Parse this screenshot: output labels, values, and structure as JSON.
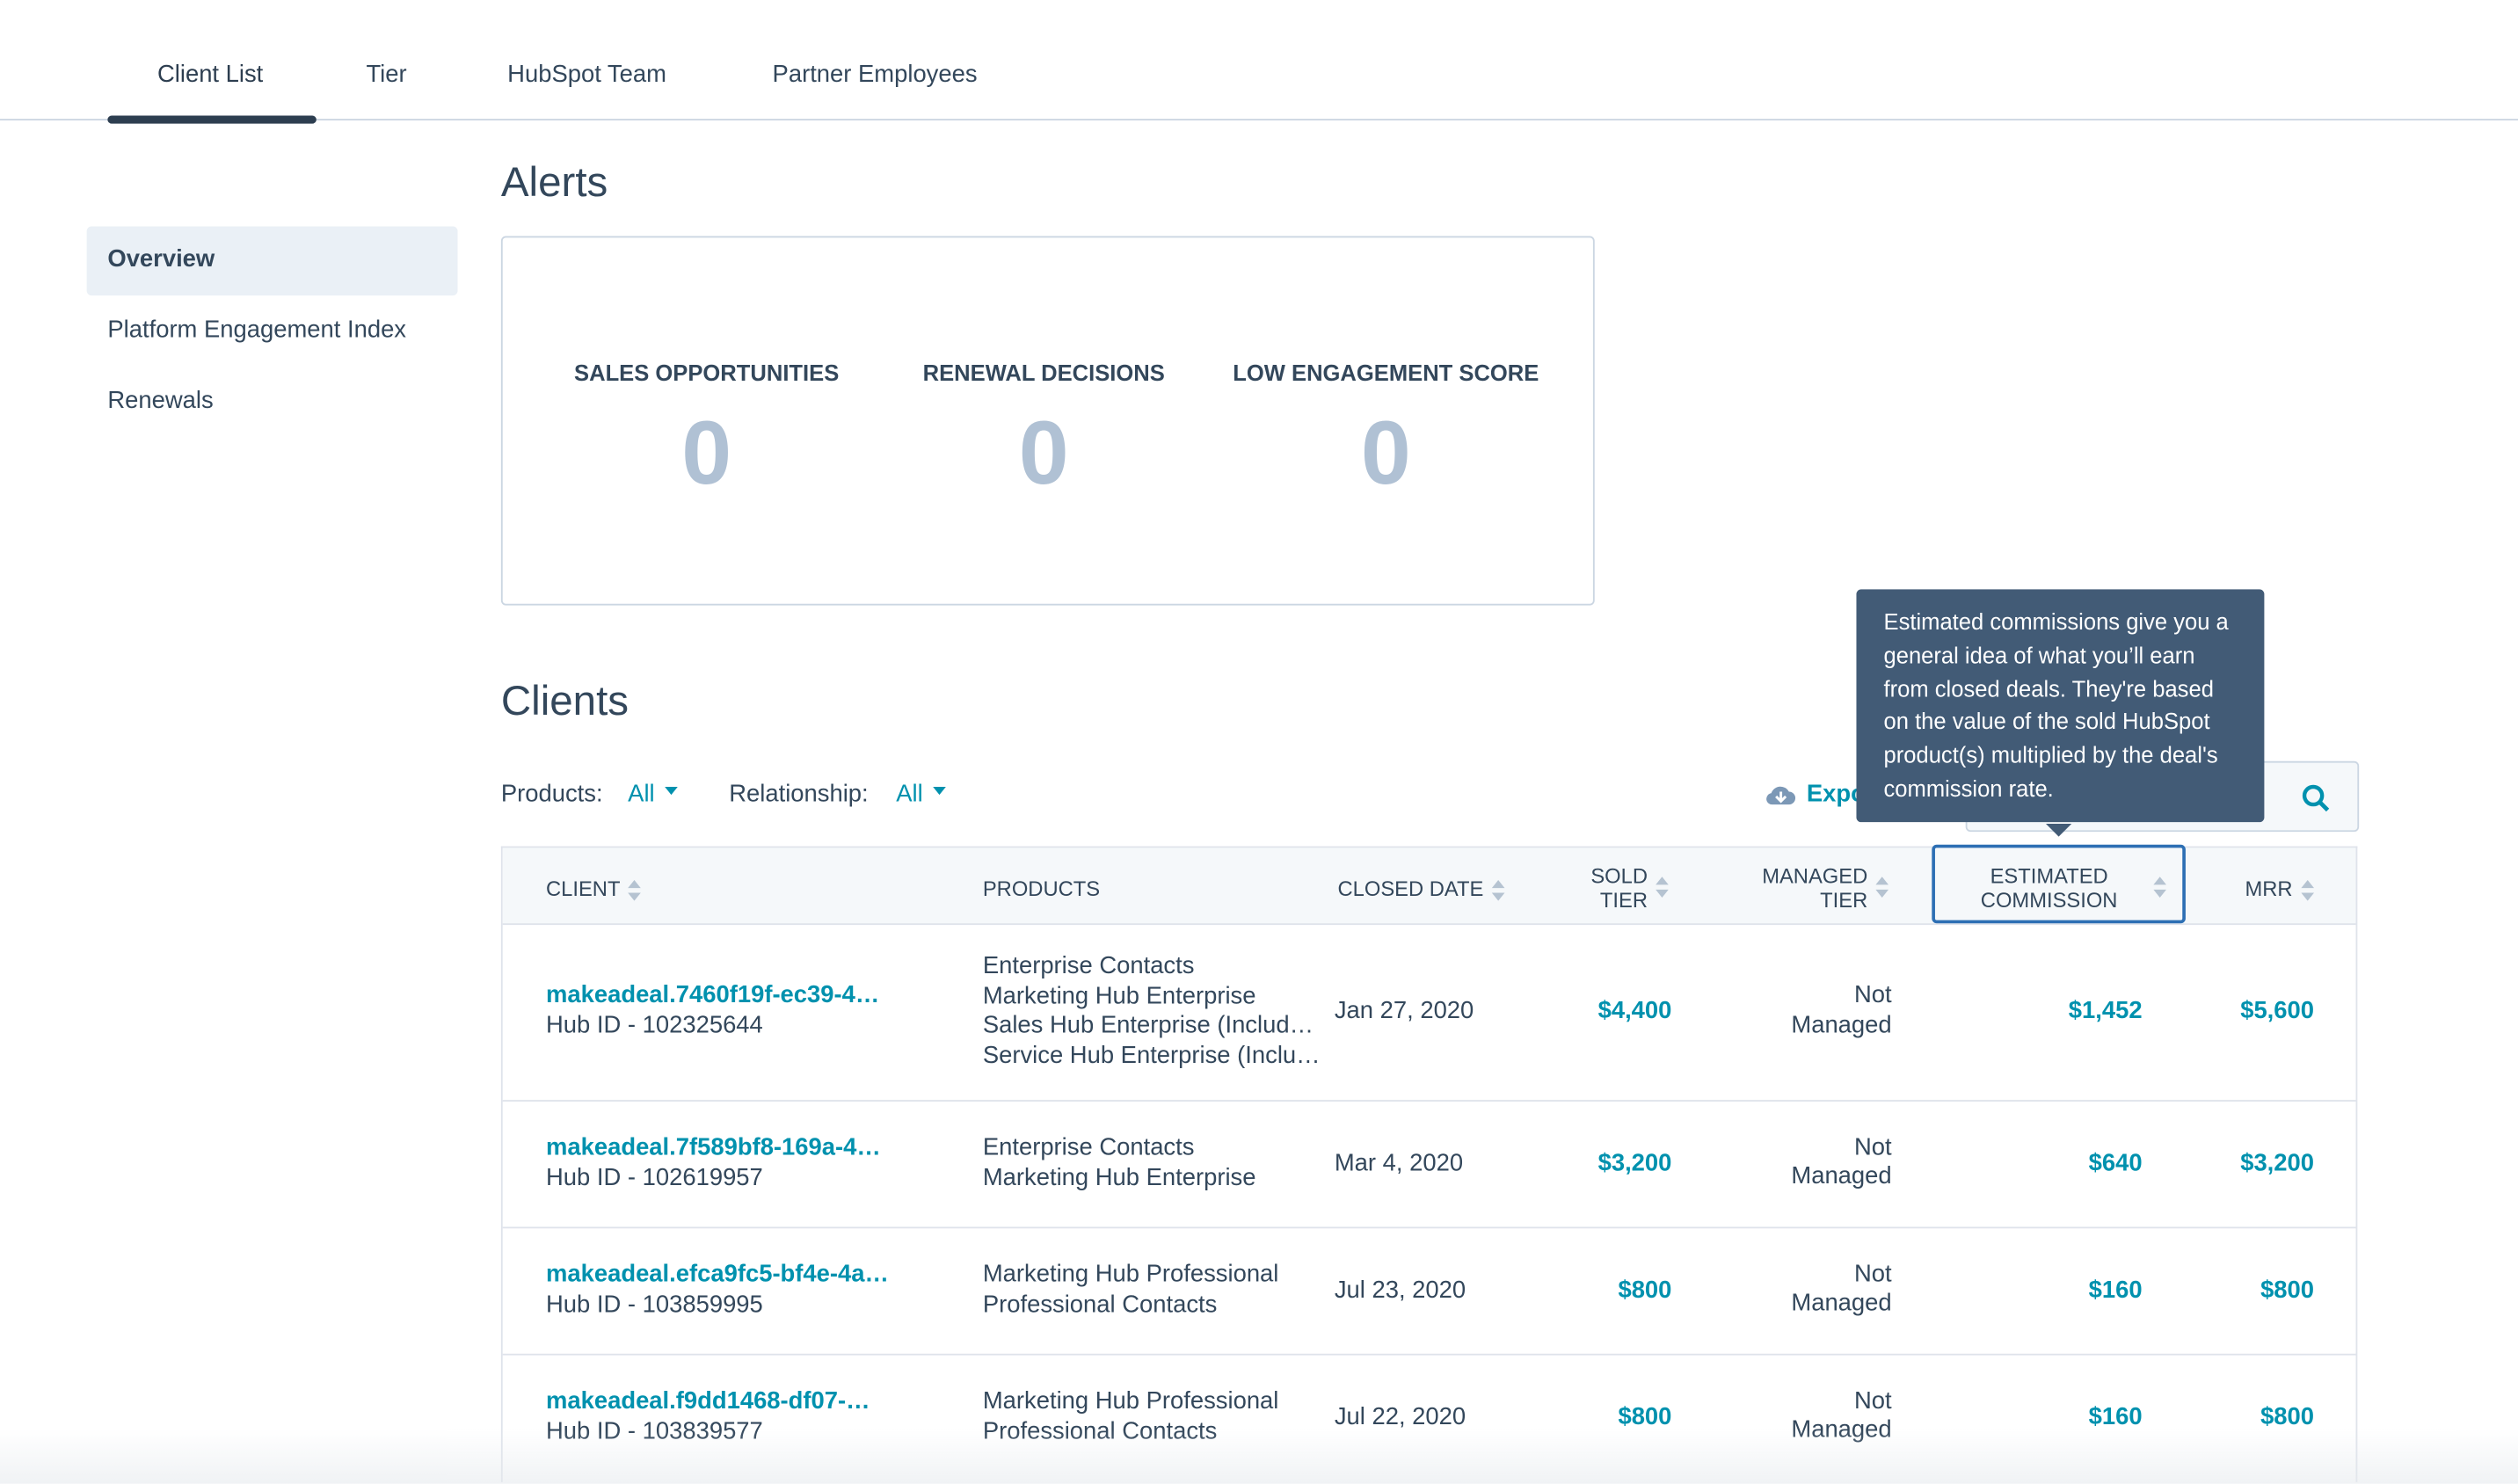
{
  "tabs": [
    "Client List",
    "Tier",
    "HubSpot Team",
    "Partner Employees"
  ],
  "sidebar": [
    "Overview",
    "Platform Engagement Index",
    "Renewals"
  ],
  "alerts": {
    "title": "Alerts",
    "items": [
      {
        "label": "SALES OPPORTUNITIES",
        "count": 0
      },
      {
        "label": "RENEWAL DECISIONS",
        "count": 0
      },
      {
        "label": "LOW ENGAGEMENT SCORE",
        "count": 0
      }
    ]
  },
  "clients": {
    "title": "Clients",
    "filters": [
      {
        "label": "Products:",
        "value": "All"
      },
      {
        "label": "Relationship:",
        "value": "All"
      }
    ],
    "export": "Export",
    "tooltip": "Estimated commissions give you a general idea of what you’ll earn from closed deals. They're based on the value of the sold HubSpot product(s) multiplied by the deal's commission rate.",
    "table": {
      "headers": [
        "CLIENT",
        "PRODUCTS",
        "CLOSED DATE",
        "SOLD TIER",
        "MANAGED TIER",
        "ESTIMATED COMMISSION",
        "MRR"
      ],
      "rows": [
        {
          "client": "makeadeal.7460f19f-ec39-4…",
          "hub_id": "Hub ID - 102325644",
          "products": [
            "Enterprise Contacts",
            "Marketing Hub Enterprise",
            "Sales Hub Enterprise (Includ…",
            "Service Hub Enterprise (Inclu…"
          ],
          "closed_date": "Jan 27, 2020",
          "sold_tier": "$4,400",
          "managed_tier": "Not Managed",
          "commission": "$1,452",
          "mrr": "$5,600"
        },
        {
          "client": "makeadeal.7f589bf8-169a-4…",
          "hub_id": "Hub ID - 102619957",
          "products": [
            "Enterprise Contacts",
            "Marketing Hub Enterprise"
          ],
          "closed_date": "Mar 4, 2020",
          "sold_tier": "$3,200",
          "managed_tier": "Not Managed",
          "commission": "$640",
          "mrr": "$3,200"
        },
        {
          "client": "makeadeal.efca9fc5-bf4e-4a…",
          "hub_id": "Hub ID - 103859995",
          "products": [
            "Marketing Hub Professional",
            "Professional Contacts"
          ],
          "closed_date": "Jul 23, 2020",
          "sold_tier": "$800",
          "managed_tier": "Not Managed",
          "commission": "$160",
          "mrr": "$800"
        },
        {
          "client": "makeadeal.f9dd1468-df07-…",
          "hub_id": "Hub ID - 103839577",
          "products": [
            "Marketing Hub Professional",
            "Professional Contacts"
          ],
          "closed_date": "Jul 22, 2020",
          "sold_tier": "$800",
          "managed_tier": "Not Managed",
          "commission": "$160",
          "mrr": "$800"
        }
      ]
    }
  }
}
